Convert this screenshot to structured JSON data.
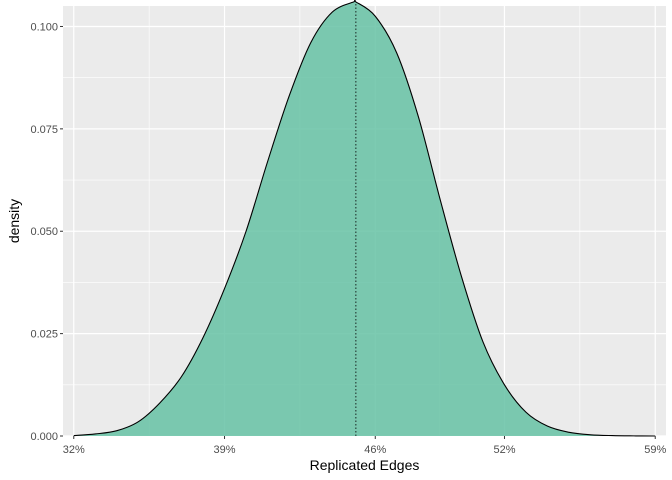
{
  "chart_data": {
    "type": "area",
    "xlabel": "Replicated Edges",
    "ylabel": "density",
    "xlim": [
      31.5,
      59.5
    ],
    "ylim": [
      0,
      0.105
    ],
    "x_ticks": [
      {
        "value": 32,
        "label": "32%"
      },
      {
        "value": 39,
        "label": "39%"
      },
      {
        "value": 46,
        "label": "46%"
      },
      {
        "value": 52,
        "label": "52%"
      },
      {
        "value": 59,
        "label": "59%"
      }
    ],
    "y_ticks": [
      {
        "value": 0.0,
        "label": "0.000"
      },
      {
        "value": 0.025,
        "label": "0.025"
      },
      {
        "value": 0.05,
        "label": "0.050"
      },
      {
        "value": 0.075,
        "label": "0.075"
      },
      {
        "value": 0.1,
        "label": "0.100"
      }
    ],
    "mean_line_x": 45.1,
    "fill_color": "#66c2a5",
    "outline_color": "#000000",
    "panel_background": "#ebebeb",
    "grid": true,
    "legend": "none",
    "series": [
      {
        "x": [
          32,
          33,
          34,
          35,
          36,
          37,
          38,
          39,
          40,
          41,
          42,
          43,
          44,
          45,
          45.1,
          46,
          47,
          48,
          49,
          50,
          51,
          52,
          53,
          54,
          55,
          56,
          57,
          58,
          59
        ],
        "values": [
          0.0001,
          0.0005,
          0.0013,
          0.0035,
          0.0081,
          0.0145,
          0.024,
          0.036,
          0.05,
          0.067,
          0.083,
          0.096,
          0.1035,
          0.106,
          0.106,
          0.1025,
          0.0935,
          0.078,
          0.058,
          0.039,
          0.023,
          0.0125,
          0.0058,
          0.0024,
          0.0009,
          0.0003,
          0.0001,
          3e-05,
          0.0
        ]
      }
    ]
  }
}
